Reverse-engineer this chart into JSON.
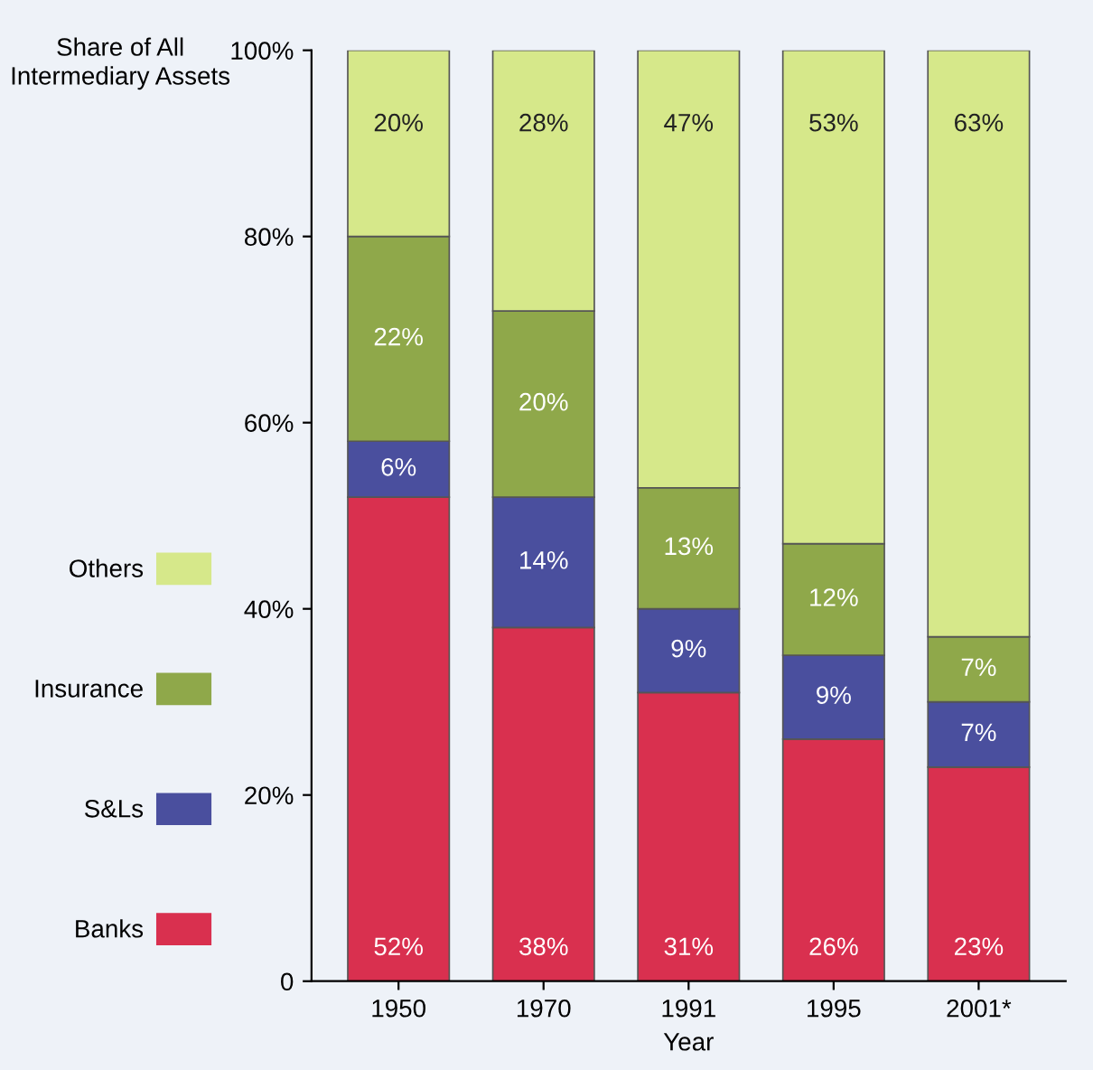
{
  "chart_data": {
    "type": "bar",
    "stacked": true,
    "ylabel": "Share of All Intermediary Assets",
    "xlabel": "Year",
    "categories": [
      "1950",
      "1970",
      "1991",
      "1995",
      "2001*"
    ],
    "series": [
      {
        "name": "Banks",
        "color": "#d9304f",
        "values": [
          52,
          38,
          31,
          26,
          23
        ],
        "value_labels": [
          "52%",
          "38%",
          "31%",
          "26%",
          "23%"
        ]
      },
      {
        "name": "S&Ls",
        "color": "#4a4f9e",
        "values": [
          6,
          14,
          9,
          9,
          7
        ],
        "value_labels": [
          "6%",
          "14%",
          "9%",
          "9%",
          "7%"
        ]
      },
      {
        "name": "Insurance",
        "color": "#8fa84a",
        "values": [
          22,
          20,
          13,
          12,
          7
        ],
        "value_labels": [
          "22%",
          "20%",
          "13%",
          "12%",
          "7%"
        ]
      },
      {
        "name": "Others",
        "color": "#d6e88a",
        "values": [
          20,
          28,
          47,
          53,
          63
        ],
        "value_labels": [
          "20%",
          "28%",
          "47%",
          "53%",
          "63%"
        ]
      }
    ],
    "ylim": [
      0,
      100
    ],
    "yticks": [
      {
        "value": 0,
        "label": "0"
      },
      {
        "value": 20,
        "label": "20%"
      },
      {
        "value": 40,
        "label": "40%"
      },
      {
        "value": 60,
        "label": "60%"
      },
      {
        "value": 80,
        "label": "80%"
      },
      {
        "value": 100,
        "label": "100%"
      }
    ],
    "grid": false,
    "legend": "left"
  }
}
